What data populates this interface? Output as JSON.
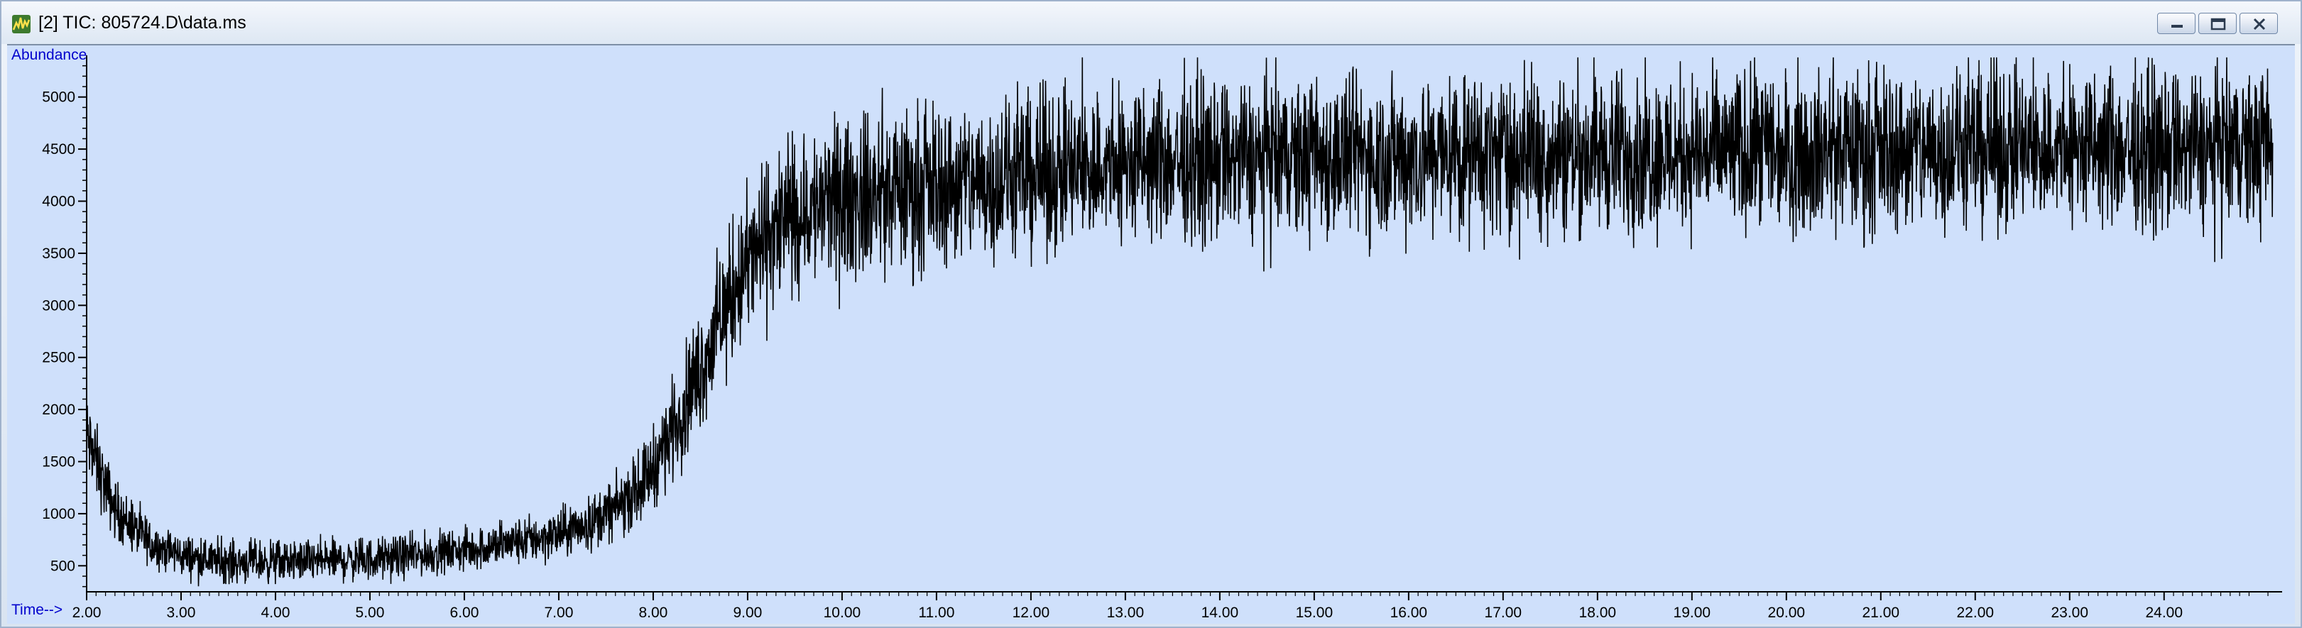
{
  "window": {
    "title": "[2] TIC: 805724.D\\data.ms",
    "icon": "spectrum-icon"
  },
  "controls": [
    "minimize-icon",
    "maximize-icon",
    "close-icon"
  ],
  "colors": {
    "plot_background": "#cfe0fb",
    "trace": "#000000",
    "axis_label": "#0000cc"
  },
  "chart_data": {
    "type": "line",
    "ylabel": "Abundance",
    "xlabel": "Time-->",
    "xlim": [
      2.0,
      25.25
    ],
    "ylim": [
      250,
      5400
    ],
    "x_ticks": [
      2,
      3,
      4,
      5,
      6,
      7,
      8,
      9,
      10,
      11,
      12,
      13,
      14,
      15,
      16,
      17,
      18,
      19,
      20,
      21,
      22,
      23,
      24
    ],
    "x_tick_labels": [
      "2.00",
      "3.00",
      "4.00",
      "5.00",
      "6.00",
      "7.00",
      "8.00",
      "9.00",
      "10.00",
      "11.00",
      "12.00",
      "13.00",
      "14.00",
      "15.00",
      "16.00",
      "17.00",
      "18.00",
      "19.00",
      "20.00",
      "21.00",
      "22.00",
      "23.00",
      "24.00"
    ],
    "y_ticks": [
      500,
      1000,
      1500,
      2000,
      2500,
      3000,
      3500,
      4000,
      4500,
      5000
    ],
    "y_tick_labels": [
      "500",
      "1000",
      "1500",
      "2000",
      "2500",
      "3000",
      "3500",
      "4000",
      "4500",
      "5000"
    ],
    "grid": false,
    "series": [
      {
        "x": [
          2.0,
          2.1,
          2.2,
          2.3,
          2.5,
          2.7,
          3.0,
          3.3,
          3.5,
          4.0,
          4.5,
          5.0,
          5.5,
          6.0,
          6.5,
          7.0,
          7.3,
          7.6,
          7.8,
          8.0,
          8.2,
          8.4,
          8.6,
          8.8,
          9.0,
          9.2,
          9.4,
          9.6,
          9.8,
          10.0,
          10.3,
          10.6,
          11.0,
          11.5,
          12.0,
          12.5,
          13.0,
          13.5,
          14.0,
          14.5,
          15.0,
          15.5,
          16.0,
          17.0,
          18.0,
          19.0,
          20.0,
          21.0,
          22.0,
          23.0,
          24.0,
          25.0,
          25.15
        ],
        "y": [
          1750,
          1500,
          1250,
          1050,
          850,
          700,
          600,
          560,
          540,
          540,
          550,
          560,
          600,
          650,
          720,
          800,
          900,
          1050,
          1200,
          1450,
          1800,
          2200,
          2600,
          3050,
          3400,
          3650,
          3800,
          3900,
          3950,
          4000,
          4050,
          4100,
          4150,
          4200,
          4250,
          4300,
          4350,
          4380,
          4400,
          4410,
          4420,
          4430,
          4440,
          4450,
          4460,
          4470,
          4480,
          4490,
          4500,
          4500,
          4500,
          4500,
          4500
        ],
        "noise_amplitude": [
          200,
          180,
          160,
          140,
          120,
          110,
          100,
          100,
          100,
          100,
          100,
          100,
          100,
          100,
          110,
          120,
          130,
          140,
          160,
          190,
          230,
          270,
          300,
          330,
          350,
          360,
          370,
          380,
          380,
          380,
          380,
          380,
          380,
          380,
          380,
          380,
          380,
          380,
          380,
          380,
          380,
          380,
          380,
          380,
          380,
          380,
          380,
          380,
          380,
          380,
          380,
          380,
          380
        ]
      }
    ]
  }
}
